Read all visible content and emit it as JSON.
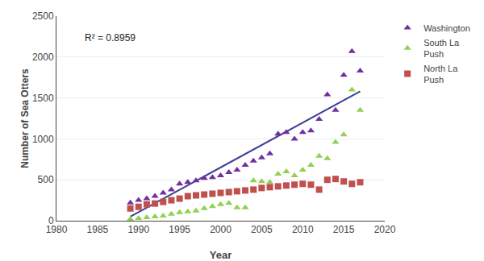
{
  "chart_data": {
    "type": "scatter",
    "xlabel": "Year",
    "ylabel": "Number of Sea Otters",
    "annotations": [
      "R² = 0.8959"
    ],
    "xlim": [
      1980,
      2020
    ],
    "ylim": [
      0,
      2500
    ],
    "xticks": [
      1980,
      1985,
      1990,
      1995,
      2000,
      2005,
      2010,
      2015,
      2020
    ],
    "yticks": [
      0,
      500,
      1000,
      1500,
      2000,
      2500
    ],
    "grid": true,
    "series": [
      {
        "name": "Washington",
        "type": "scatter",
        "marker": "triangle-up",
        "color": "#7030A0",
        "x": [
          1989,
          1990,
          1991,
          1992,
          1993,
          1994,
          1995,
          1996,
          1997,
          1998,
          1999,
          2000,
          2001,
          2002,
          2003,
          2004,
          2005,
          2006,
          2007,
          2008,
          2009,
          2010,
          2011,
          2012,
          2013,
          2014,
          2015,
          2016,
          2017
        ],
        "values": [
          220,
          250,
          270,
          300,
          340,
          380,
          450,
          470,
          490,
          520,
          530,
          550,
          590,
          620,
          680,
          730,
          770,
          820,
          1060,
          1080,
          1000,
          1080,
          1100,
          1240,
          1540,
          1350,
          1780,
          2070,
          1830
        ]
      },
      {
        "name": "South La\nPush",
        "type": "scatter",
        "marker": "triangle-up",
        "color": "#92D050",
        "x": [
          1989,
          1990,
          1991,
          1992,
          1993,
          1994,
          1995,
          1996,
          1997,
          1998,
          1999,
          2000,
          2001,
          2002,
          2003,
          2004,
          2005,
          2006,
          2007,
          2008,
          2009,
          2010,
          2011,
          2012,
          2013,
          2014,
          2015,
          2016,
          2017
        ],
        "values": [
          20,
          30,
          40,
          50,
          60,
          80,
          100,
          110,
          120,
          150,
          175,
          200,
          215,
          160,
          160,
          490,
          480,
          470,
          570,
          600,
          550,
          620,
          680,
          790,
          760,
          960,
          1050,
          1600,
          1350
        ]
      },
      {
        "name": "North La\nPush",
        "type": "scatter",
        "marker": "square",
        "color": "#C0504D",
        "x": [
          1989,
          1990,
          1991,
          1992,
          1993,
          1994,
          1995,
          1996,
          1997,
          1998,
          1999,
          2000,
          2001,
          2002,
          2003,
          2004,
          2005,
          2006,
          2007,
          2008,
          2009,
          2010,
          2011,
          2012,
          2013,
          2014,
          2015,
          2016,
          2017
        ],
        "values": [
          150,
          170,
          200,
          210,
          230,
          250,
          270,
          300,
          310,
          320,
          330,
          340,
          350,
          360,
          370,
          380,
          400,
          410,
          420,
          430,
          440,
          450,
          440,
          380,
          500,
          510,
          480,
          450,
          470
        ]
      },
      {
        "type": "line",
        "color": "#3F3F99",
        "x": [
          1989,
          2017
        ],
        "values": [
          50,
          1580
        ]
      }
    ]
  }
}
